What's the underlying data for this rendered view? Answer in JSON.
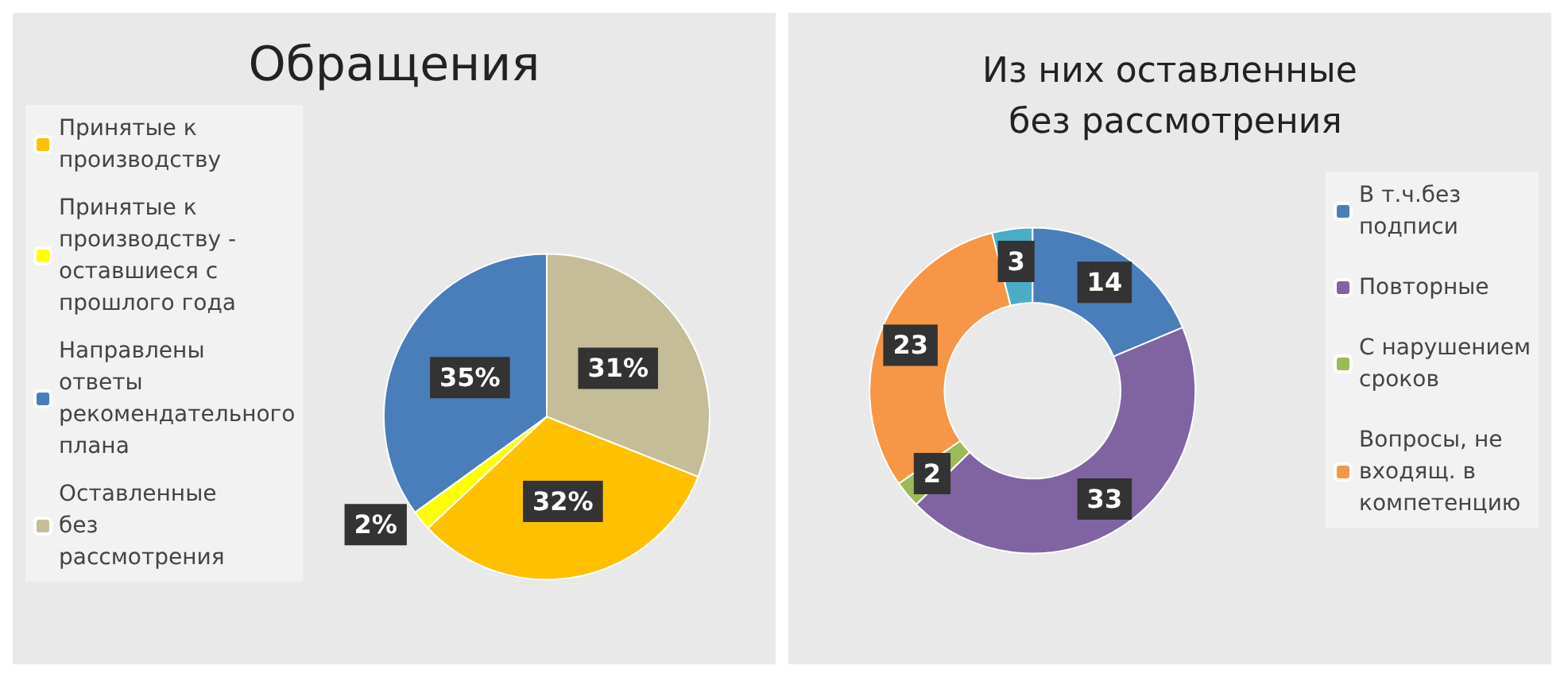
{
  "chart_data": [
    {
      "type": "pie",
      "title": "Обращения",
      "categories": [
        "Принятые к производству",
        "Принятые к производству - оставшиеся с прошлого года",
        "Направлены ответы рекомендательного плана",
        "Оставленные без рассмотрения"
      ],
      "values": [
        32,
        2,
        35,
        31
      ],
      "value_labels": [
        "32%",
        "2%",
        "35%",
        "31%"
      ],
      "colors": [
        "#ffc000",
        "#ffff00",
        "#4a7ebb",
        "#c4bd97"
      ],
      "legend": "left"
    },
    {
      "type": "donut",
      "title": "Из них оставленные без рассмотрения",
      "categories": [
        "В т.ч.без подписи",
        "Повторные",
        "С нарушением сроков",
        "Вопросы, не входящ. в компетенцию",
        null
      ],
      "values": [
        14,
        33,
        2,
        23,
        3
      ],
      "colors": [
        "#4a7ebb",
        "#8064a2",
        "#9bbb59",
        "#f79646",
        "#4bacc6"
      ],
      "data_labels": true,
      "legend": "right"
    }
  ]
}
